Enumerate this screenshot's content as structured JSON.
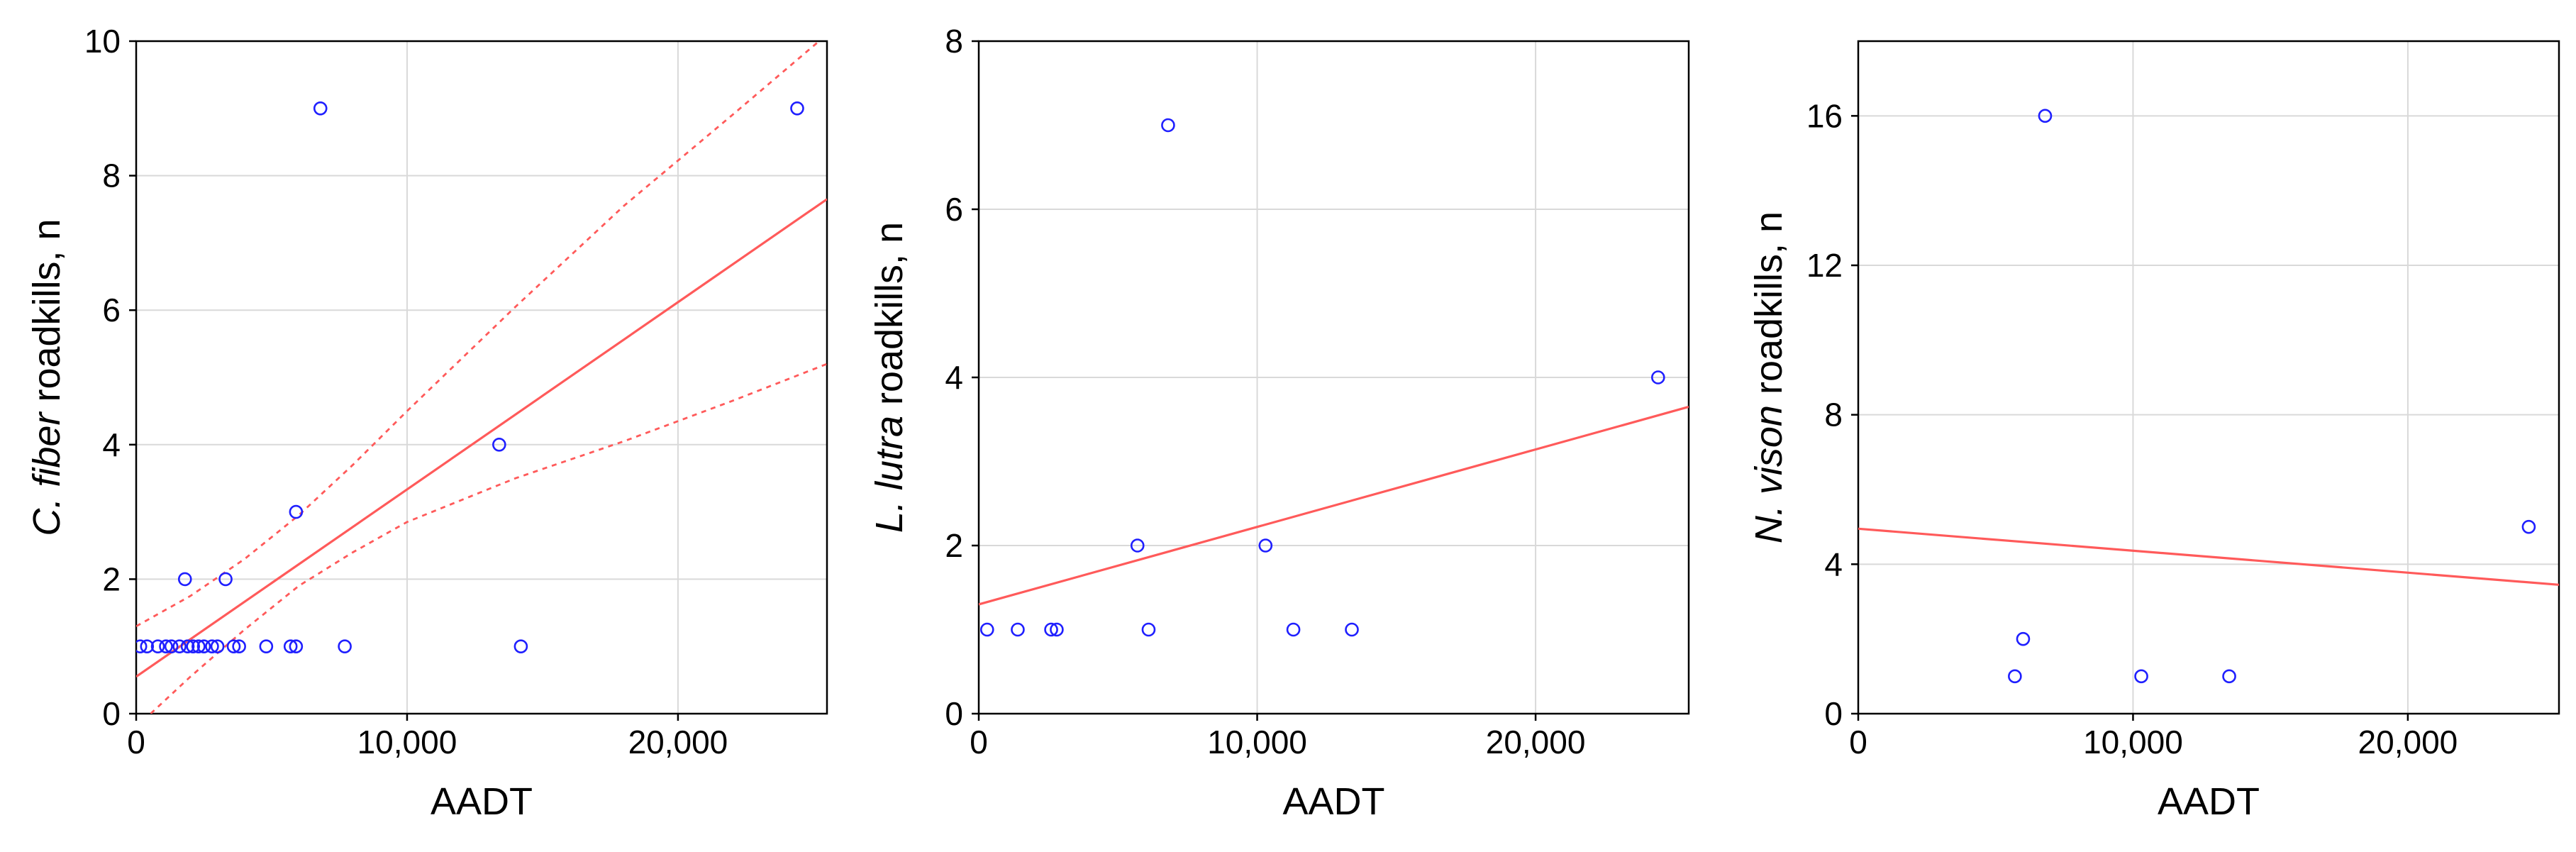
{
  "chart_data": [
    {
      "type": "scatter",
      "xlabel": "AADT",
      "ylabel_italic": "C. fiber",
      "ylabel_rest": " roadkills, n",
      "xlim": [
        0,
        25500
      ],
      "ylim": [
        0,
        10
      ],
      "xticks": [
        0,
        10000,
        20000
      ],
      "xtick_labels": [
        "0",
        "10,000",
        "20,000"
      ],
      "yticks": [
        0,
        2,
        4,
        6,
        8,
        10
      ],
      "ytick_labels": [
        "0",
        "2",
        "4",
        "6",
        "8",
        "10"
      ],
      "grid": true,
      "points": [
        {
          "x": 150,
          "y": 1
        },
        {
          "x": 400,
          "y": 1
        },
        {
          "x": 800,
          "y": 1
        },
        {
          "x": 1100,
          "y": 1
        },
        {
          "x": 1300,
          "y": 1
        },
        {
          "x": 1600,
          "y": 1
        },
        {
          "x": 1900,
          "y": 1
        },
        {
          "x": 1800,
          "y": 2
        },
        {
          "x": 2100,
          "y": 1
        },
        {
          "x": 2300,
          "y": 1
        },
        {
          "x": 2500,
          "y": 1
        },
        {
          "x": 2800,
          "y": 1
        },
        {
          "x": 3000,
          "y": 1
        },
        {
          "x": 3300,
          "y": 2
        },
        {
          "x": 3600,
          "y": 1
        },
        {
          "x": 3800,
          "y": 1
        },
        {
          "x": 4800,
          "y": 1
        },
        {
          "x": 5700,
          "y": 1
        },
        {
          "x": 5900,
          "y": 1
        },
        {
          "x": 5900,
          "y": 3
        },
        {
          "x": 6800,
          "y": 9
        },
        {
          "x": 7700,
          "y": 1
        },
        {
          "x": 13400,
          "y": 4
        },
        {
          "x": 14200,
          "y": 1
        },
        {
          "x": 24400,
          "y": 9
        }
      ],
      "fit_line": {
        "x": [
          0,
          25500
        ],
        "y": [
          0.55,
          7.65
        ]
      },
      "confidence_band": {
        "upper": {
          "x": [
            0,
            2000,
            4000,
            6000,
            8000,
            10000,
            14000,
            18000,
            22000,
            25500
          ],
          "y": [
            1.3,
            1.75,
            2.3,
            2.95,
            3.7,
            4.5,
            6.05,
            7.55,
            8.9,
            10.1
          ]
        },
        "lower": {
          "x": [
            0,
            2000,
            4000,
            6000,
            8000,
            10000,
            14000,
            18000,
            22000,
            25500
          ],
          "y": [
            -0.2,
            0.55,
            1.25,
            1.9,
            2.4,
            2.85,
            3.5,
            4.05,
            4.65,
            5.2
          ]
        }
      }
    },
    {
      "type": "scatter",
      "xlabel": "AADT",
      "ylabel_italic": "L. lutra",
      "ylabel_rest": " roadkills, n",
      "xlim": [
        0,
        25500
      ],
      "ylim": [
        0,
        8
      ],
      "xticks": [
        0,
        10000,
        20000
      ],
      "xtick_labels": [
        "0",
        "10,000",
        "20,000"
      ],
      "yticks": [
        0,
        2,
        4,
        6,
        8
      ],
      "ytick_labels": [
        "0",
        "2",
        "4",
        "6",
        "8"
      ],
      "grid": true,
      "points": [
        {
          "x": 300,
          "y": 1
        },
        {
          "x": 1400,
          "y": 1
        },
        {
          "x": 2600,
          "y": 1
        },
        {
          "x": 2800,
          "y": 1
        },
        {
          "x": 5700,
          "y": 2
        },
        {
          "x": 6100,
          "y": 1
        },
        {
          "x": 6800,
          "y": 7
        },
        {
          "x": 10300,
          "y": 2
        },
        {
          "x": 11300,
          "y": 1
        },
        {
          "x": 13400,
          "y": 1
        },
        {
          "x": 24400,
          "y": 4
        }
      ],
      "fit_line": {
        "x": [
          0,
          25500
        ],
        "y": [
          1.3,
          3.65
        ]
      }
    },
    {
      "type": "scatter",
      "xlabel": "AADT",
      "ylabel_italic": "N. vison",
      "ylabel_rest": " roadkills, n",
      "xlim": [
        0,
        25500
      ],
      "ylim": [
        0,
        18
      ],
      "xticks": [
        0,
        10000,
        20000
      ],
      "xtick_labels": [
        "0",
        "10,000",
        "20,000"
      ],
      "yticks": [
        0,
        4,
        8,
        12,
        16
      ],
      "ytick_labels": [
        "0",
        "4",
        "8",
        "12",
        "16"
      ],
      "grid": true,
      "points": [
        {
          "x": 5700,
          "y": 1
        },
        {
          "x": 6000,
          "y": 2
        },
        {
          "x": 6800,
          "y": 16
        },
        {
          "x": 10300,
          "y": 1
        },
        {
          "x": 13500,
          "y": 1
        },
        {
          "x": 24400,
          "y": 5
        }
      ],
      "fit_line": {
        "x": [
          0,
          25500
        ],
        "y": [
          4.95,
          3.45
        ]
      }
    }
  ]
}
